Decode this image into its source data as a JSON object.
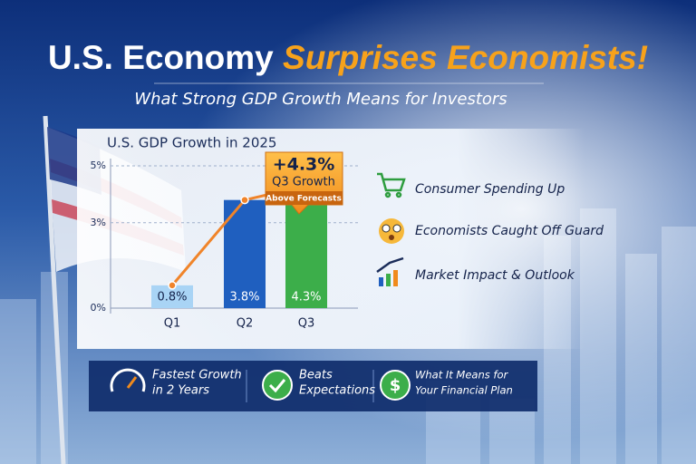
{
  "headline": {
    "lead": "U.S. Economy",
    "accent": "Surprises Economists!"
  },
  "subtitle": "What Strong GDP Growth Means for Investors",
  "chart_data": {
    "type": "bar",
    "title": "U.S. GDP Growth in 2025",
    "categories": [
      "Q1",
      "Q2",
      "Q3"
    ],
    "values": [
      0.8,
      3.8,
      4.3
    ],
    "value_labels": [
      "0.8%",
      "3.8%",
      "4.3%"
    ],
    "colors": [
      "#a9d4f5",
      "#1f5fbf",
      "#3cae4a"
    ],
    "line_color": "#f0842a",
    "ylim": [
      0,
      5
    ],
    "yticks": [
      {
        "value": 0,
        "label": "0%"
      },
      {
        "value": 3,
        "label": "3%"
      },
      {
        "value": 5,
        "label": "5%"
      }
    ],
    "grid": true,
    "callout": {
      "headline": "+4.3%",
      "text": "Q3 Growth",
      "note": "Above Forecasts"
    }
  },
  "highlights": [
    "Consumer Spending Up",
    "Economists Caught Off Guard",
    "Market Impact & Outlook"
  ],
  "footer": [
    [
      "Fastest Growth",
      "in 2 Years"
    ],
    [
      "Beats",
      "Expectations"
    ],
    [
      "What It Means for",
      "Your Financial Plan"
    ]
  ]
}
